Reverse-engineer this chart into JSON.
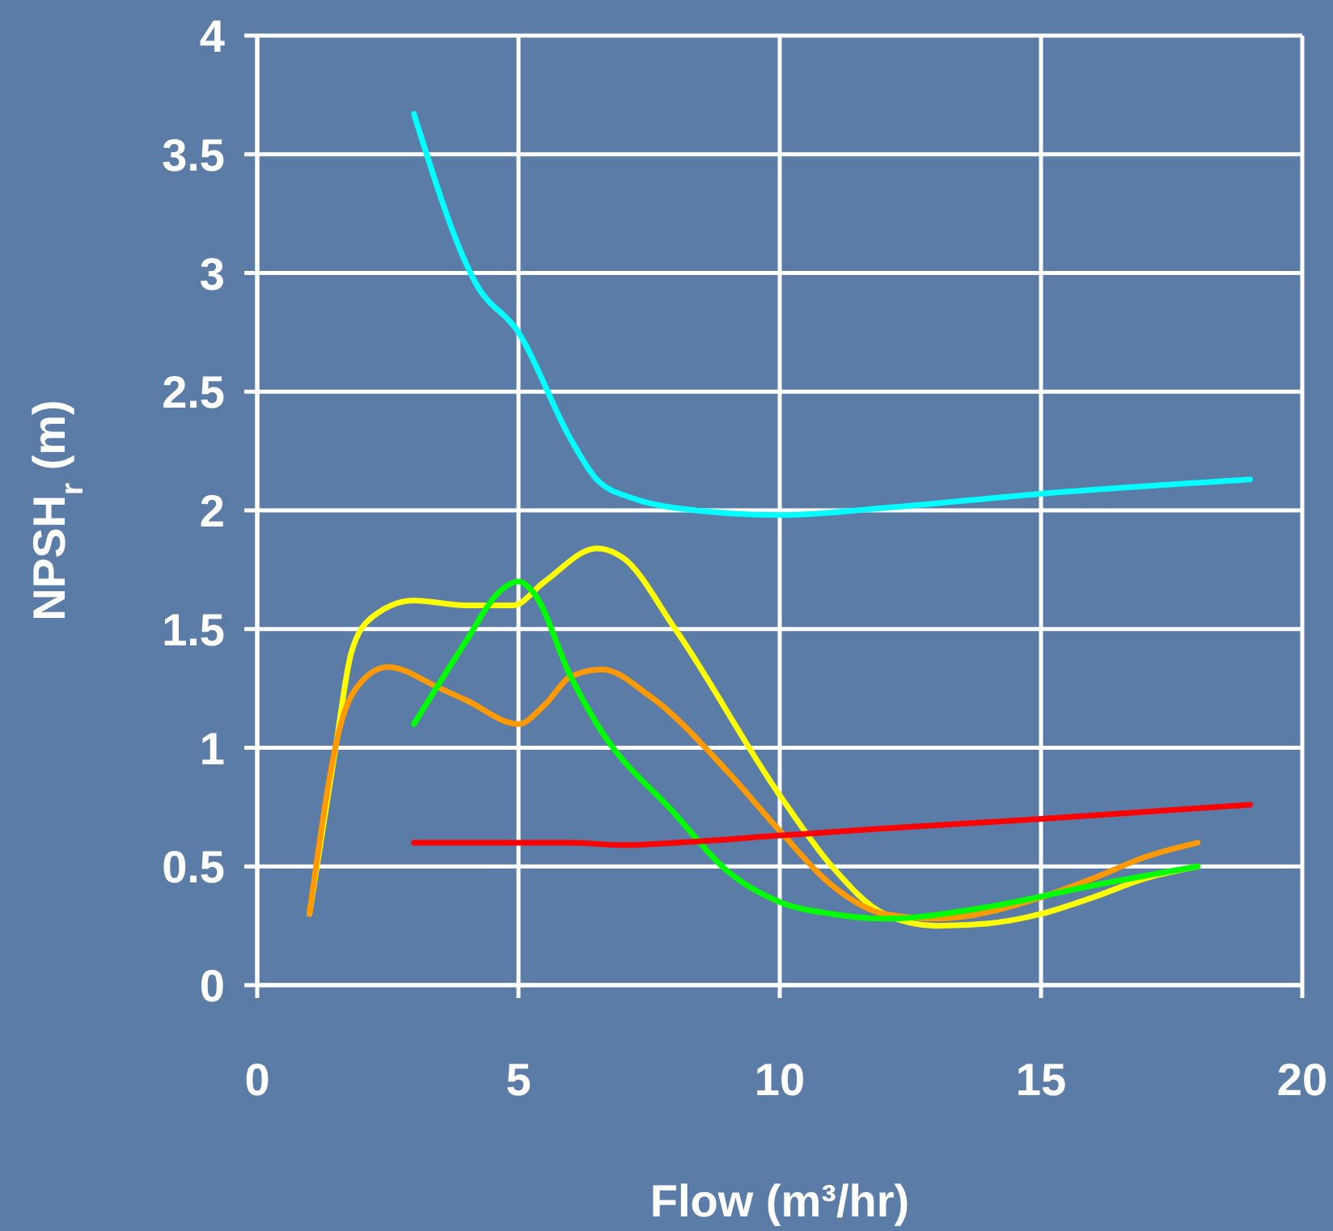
{
  "chart_data": {
    "type": "line",
    "xlabel": "Flow (m³/hr)",
    "ylabel": "NPSH$_{r}$ (m)",
    "xlim": [
      0,
      20
    ],
    "ylim": [
      0,
      4
    ],
    "xticks": [
      0,
      5,
      10,
      15,
      20
    ],
    "yticks": [
      0,
      0.5,
      1,
      1.5,
      2,
      2.5,
      3,
      3.5,
      4
    ],
    "grid": true,
    "marker": "none",
    "line_style": "solid",
    "series": [
      {
        "color": "#00ffff",
        "x": [
          3,
          4.2,
          5,
          6,
          6.5,
          7.2,
          8,
          10,
          12,
          15,
          19
        ],
        "values": [
          3.67,
          2.95,
          2.75,
          2.3,
          2.13,
          2.05,
          2.01,
          1.98,
          2.01,
          2.07,
          2.13
        ]
      },
      {
        "color": "#ffff00",
        "x": [
          1,
          1.5,
          1.8,
          2.2,
          3,
          4,
          4.9,
          5.5,
          6.5,
          7,
          8,
          10,
          11,
          12,
          13,
          14,
          15,
          16,
          17,
          18
        ],
        "values": [
          0.3,
          1.0,
          1.4,
          1.55,
          1.62,
          1.6,
          1.6,
          1.7,
          1.84,
          1.8,
          1.5,
          0.8,
          0.5,
          0.3,
          0.25,
          0.26,
          0.3,
          0.37,
          0.45,
          0.5
        ]
      },
      {
        "color": "#ff9900",
        "x": [
          1,
          1.6,
          2,
          2.5,
          3.5,
          4,
          5,
          5.5,
          6,
          6.6,
          7.5,
          9,
          10,
          11,
          12,
          13,
          15,
          16,
          17,
          18
        ],
        "values": [
          0.3,
          1.1,
          1.28,
          1.34,
          1.25,
          1.2,
          1.1,
          1.18,
          1.3,
          1.33,
          1.22,
          0.9,
          0.65,
          0.42,
          0.3,
          0.28,
          0.37,
          0.45,
          0.54,
          0.6
        ]
      },
      {
        "color": "#00ff00",
        "x": [
          3,
          4,
          4.6,
          5,
          5.3,
          6,
          6.5,
          8,
          9,
          10,
          11,
          12,
          14,
          16,
          18
        ],
        "values": [
          1.1,
          1.45,
          1.65,
          1.7,
          1.65,
          1.3,
          1.1,
          0.72,
          0.48,
          0.35,
          0.3,
          0.28,
          0.33,
          0.42,
          0.5
        ]
      },
      {
        "color": "#ff0000",
        "x": [
          3,
          5,
          6,
          7,
          8,
          10,
          12,
          15,
          19
        ],
        "values": [
          0.6,
          0.6,
          0.6,
          0.59,
          0.6,
          0.63,
          0.66,
          0.7,
          0.76
        ]
      }
    ]
  }
}
